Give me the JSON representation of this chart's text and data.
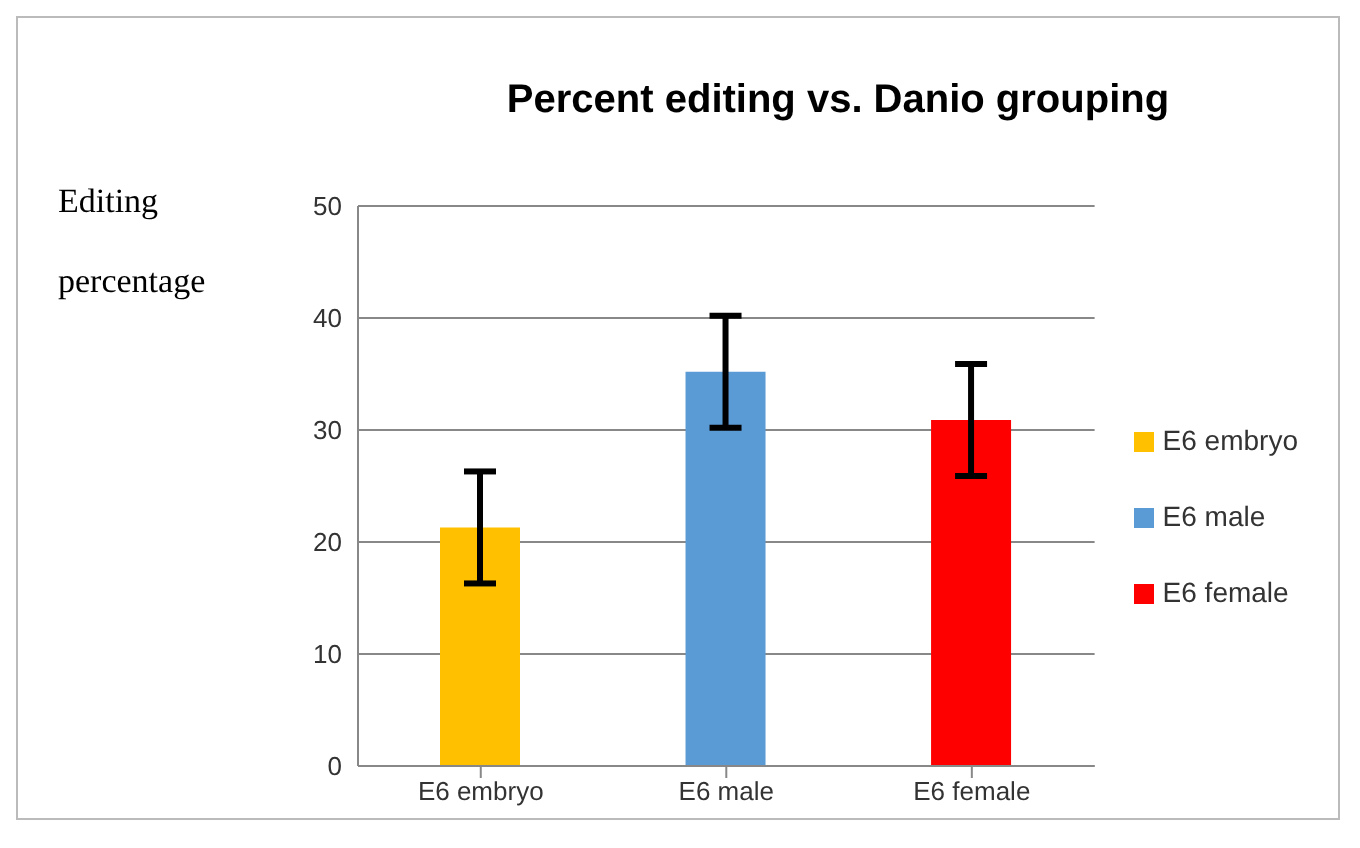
{
  "chart_data": {
    "type": "bar",
    "title": "Percent editing vs. Danio grouping",
    "ylabel": "Editing percentage",
    "categories": [
      "E6 embryo",
      "E6 male",
      "E6 female"
    ],
    "series": [
      {
        "name": "E6 embryo",
        "color": "#ffc000",
        "values": [
          21.3,
          null,
          null
        ],
        "errors": [
          5,
          null,
          null
        ]
      },
      {
        "name": "E6 male",
        "color": "#5b9bd5",
        "values": [
          null,
          35.2,
          null
        ],
        "errors": [
          null,
          5,
          null
        ]
      },
      {
        "name": "E6 female",
        "color": "#ff0000",
        "values": [
          null,
          null,
          30.9
        ],
        "errors": [
          null,
          null,
          5
        ]
      }
    ],
    "stacked": true,
    "ylim": [
      0,
      50
    ],
    "yticks": [
      0,
      10,
      20,
      30,
      40,
      50
    ],
    "grid": "y",
    "legend": "right"
  }
}
